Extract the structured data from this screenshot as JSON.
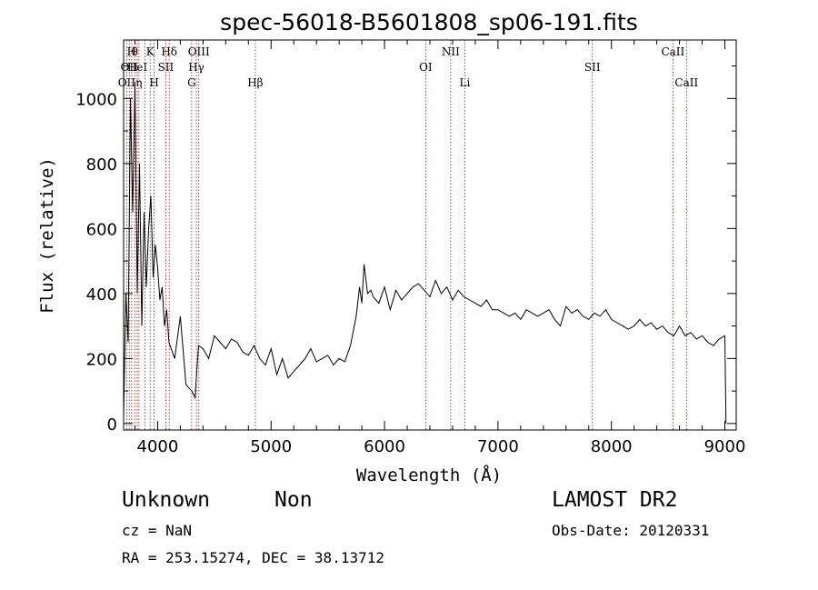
{
  "chart_data": {
    "type": "line",
    "title": "spec-56018-B5601808_sp06-191.fits",
    "xlabel": "Wavelength (Å)",
    "ylabel": "Flux (relative)",
    "xlim": [
      3700,
      9100
    ],
    "ylim": [
      -20,
      1180
    ],
    "xticks": [
      4000,
      5000,
      6000,
      7000,
      8000,
      9000
    ],
    "yticks": [
      0,
      200,
      400,
      600,
      800,
      1000
    ],
    "grid": false,
    "series": [
      {
        "x": [
          3700,
          3720,
          3740,
          3760,
          3780,
          3800,
          3820,
          3840,
          3860,
          3880,
          3900,
          3920,
          3940,
          3960,
          3980,
          4000,
          4020,
          4040,
          4060,
          4080,
          4100,
          4150,
          4200,
          4250,
          4300,
          4330,
          4360,
          4400,
          4450,
          4500,
          4550,
          4600,
          4650,
          4700,
          4750,
          4800,
          4850,
          4900,
          4950,
          5000,
          5050,
          5100,
          5150,
          5200,
          5250,
          5300,
          5350,
          5400,
          5450,
          5500,
          5550,
          5600,
          5650,
          5700,
          5750,
          5780,
          5800,
          5820,
          5850,
          5880,
          5900,
          5950,
          6000,
          6050,
          6100,
          6150,
          6200,
          6250,
          6300,
          6350,
          6400,
          6450,
          6500,
          6550,
          6600,
          6650,
          6700,
          6750,
          6800,
          6850,
          6900,
          6950,
          7000,
          7050,
          7100,
          7150,
          7200,
          7250,
          7300,
          7350,
          7400,
          7450,
          7500,
          7550,
          7600,
          7650,
          7700,
          7750,
          7800,
          7850,
          7900,
          7950,
          8000,
          8050,
          8100,
          8150,
          8200,
          8250,
          8300,
          8350,
          8400,
          8450,
          8500,
          8550,
          8600,
          8650,
          8700,
          8750,
          8800,
          8850,
          8900,
          8950,
          9000,
          9010
        ],
        "y": [
          20,
          400,
          250,
          1000,
          650,
          1050,
          400,
          800,
          300,
          650,
          420,
          600,
          700,
          450,
          550,
          480,
          380,
          420,
          300,
          350,
          250,
          200,
          330,
          120,
          100,
          80,
          240,
          230,
          200,
          270,
          250,
          230,
          260,
          250,
          220,
          210,
          240,
          200,
          180,
          230,
          150,
          200,
          140,
          160,
          180,
          200,
          230,
          190,
          200,
          210,
          180,
          200,
          190,
          240,
          330,
          420,
          370,
          490,
          400,
          410,
          390,
          370,
          420,
          350,
          410,
          380,
          400,
          420,
          430,
          410,
          390,
          440,
          400,
          420,
          380,
          410,
          390,
          380,
          370,
          360,
          380,
          350,
          350,
          340,
          330,
          340,
          320,
          350,
          340,
          330,
          340,
          350,
          320,
          300,
          360,
          340,
          350,
          330,
          320,
          340,
          330,
          350,
          320,
          310,
          300,
          290,
          300,
          320,
          300,
          310,
          290,
          300,
          280,
          270,
          300,
          270,
          280,
          260,
          270,
          250,
          240,
          260,
          270,
          0
        ]
      }
    ],
    "line_markers": [
      {
        "wavelength": 3727,
        "label": "OII",
        "row": 3
      },
      {
        "wavelength": 3750,
        "label": "OII",
        "row": 2
      },
      {
        "wavelength": 3771,
        "label": "H",
        "row": 1
      },
      {
        "wavelength": 3798,
        "label": "θ",
        "row": 1
      },
      {
        "wavelength": 3820,
        "label": "HeI",
        "row": 2
      },
      {
        "wavelength": 3835,
        "label": "η",
        "row": 3
      },
      {
        "wavelength": 3889,
        "label": "",
        "row": 0
      },
      {
        "wavelength": 3934,
        "label": "K",
        "row": 1
      },
      {
        "wavelength": 3969,
        "label": "H",
        "row": 3
      },
      {
        "wavelength": 4072,
        "label": "SII",
        "row": 2
      },
      {
        "wavelength": 4102,
        "label": "Hδ",
        "row": 1
      },
      {
        "wavelength": 4300,
        "label": "G",
        "row": 3
      },
      {
        "wavelength": 4341,
        "label": "Hγ",
        "row": 2
      },
      {
        "wavelength": 4363,
        "label": "OIII",
        "row": 1
      },
      {
        "wavelength": 4861,
        "label": "Hβ",
        "row": 3
      },
      {
        "wavelength": 6363,
        "label": "OI",
        "row": 2
      },
      {
        "wavelength": 6583,
        "label": "NII",
        "row": 1
      },
      {
        "wavelength": 6708,
        "label": "Li",
        "row": 3
      },
      {
        "wavelength": 7832,
        "label": "SII",
        "row": 2
      },
      {
        "wavelength": 8542,
        "label": "CaII",
        "row": 1
      },
      {
        "wavelength": 8662,
        "label": "CaII",
        "row": 3
      }
    ]
  },
  "info": {
    "object_class": "Unknown",
    "subclass": "Non",
    "survey": "LAMOST DR2",
    "redshift": "cz = NaN",
    "obs_date": "Obs-Date: 20120331",
    "coords": "RA = 253.15274, DEC =  38.13712"
  }
}
